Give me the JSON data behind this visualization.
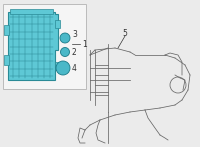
{
  "bg_color": "#ebebeb",
  "box_color": "#f5f5f5",
  "box_border": "#bbbbbb",
  "fuse_fill": "#5ec8d5",
  "fuse_edge": "#2a8a96",
  "line_color": "#666666",
  "label_color": "#333333",
  "connector_fill": "#4ab8c8",
  "connector_edge": "#1a7a88"
}
